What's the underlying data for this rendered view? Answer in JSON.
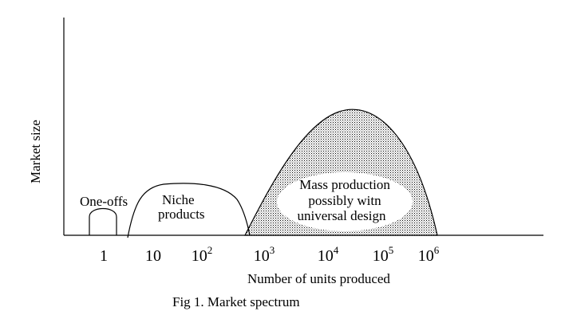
{
  "diagram": {
    "y_axis_label": "Market size",
    "x_axis_label": "Number of units produced",
    "caption": "Fig 1. Market spectrum",
    "ticks": [
      {
        "base": "1",
        "exp": ""
      },
      {
        "base": "10",
        "exp": ""
      },
      {
        "base": "10",
        "exp": "2"
      },
      {
        "base": "10",
        "exp": "3"
      },
      {
        "base": "10",
        "exp": "4"
      },
      {
        "base": "10",
        "exp": "5"
      },
      {
        "base": "10",
        "exp": "6"
      }
    ],
    "regions": {
      "one_offs": {
        "label": "One-offs"
      },
      "niche": {
        "line1": "Niche",
        "line2": "products"
      },
      "mass": {
        "line1": "Mass production",
        "line2": "possibly witn",
        "line3": "universal design"
      }
    }
  }
}
